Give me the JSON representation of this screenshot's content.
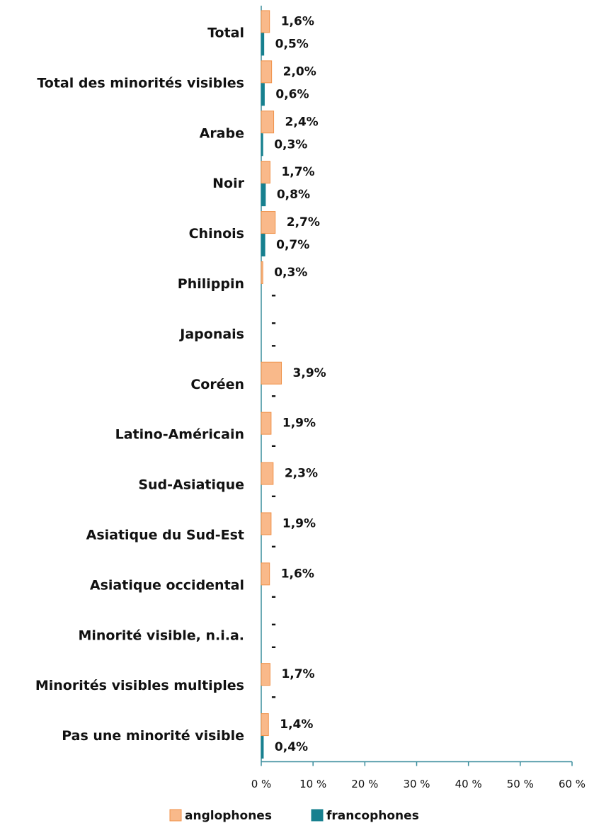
{
  "chart_data": {
    "type": "bar",
    "orientation": "horizontal",
    "categories": [
      "Total",
      "Total des minorités visibles",
      "Arabe",
      "Noir",
      "Chinois",
      "Philippin",
      "Japonais",
      "Coréen",
      "Latino-Américain",
      "Sud-Asiatique",
      "Asiatique du Sud-Est",
      "Asiatique occidental",
      "Minorité visible, n.i.a.",
      "Minorités visibles multiples",
      "Pas une minorité visible"
    ],
    "series": [
      {
        "name": "anglophones",
        "color": "#f9b98a",
        "stroke": "#f0924a",
        "values": [
          1.6,
          2.0,
          2.4,
          1.7,
          2.7,
          0.3,
          null,
          3.9,
          1.9,
          2.3,
          1.9,
          1.6,
          null,
          1.7,
          1.4
        ],
        "value_labels": [
          "1,6%",
          "2,0%",
          "2,4%",
          "1,7%",
          "2,7%",
          "0,3%",
          "-",
          "3,9%",
          "1,9%",
          "2,3%",
          "1,9%",
          "1,6%",
          "-",
          "1,7%",
          "1,4%"
        ]
      },
      {
        "name": "francophones",
        "color": "#17808f",
        "stroke": "#17808f",
        "values": [
          0.5,
          0.6,
          0.3,
          0.8,
          0.7,
          null,
          null,
          null,
          null,
          null,
          null,
          null,
          null,
          null,
          0.4
        ],
        "value_labels": [
          "0,5%",
          "0,6%",
          "0,3%",
          "0,8%",
          "0,7%",
          "-",
          "-",
          "-",
          "-",
          "-",
          "-",
          "-",
          "-",
          "-",
          "0,4%"
        ]
      }
    ],
    "xlim": [
      0,
      60
    ],
    "xticks": [
      {
        "value": 0,
        "label": "0 %"
      },
      {
        "value": 10,
        "label": "10 %"
      },
      {
        "value": 20,
        "label": "20 %"
      },
      {
        "value": 30,
        "label": "30 %"
      },
      {
        "value": 40,
        "label": "40 %"
      },
      {
        "value": 50,
        "label": "50 %"
      },
      {
        "value": 60,
        "label": "60 %"
      }
    ],
    "legend": "bottom"
  }
}
